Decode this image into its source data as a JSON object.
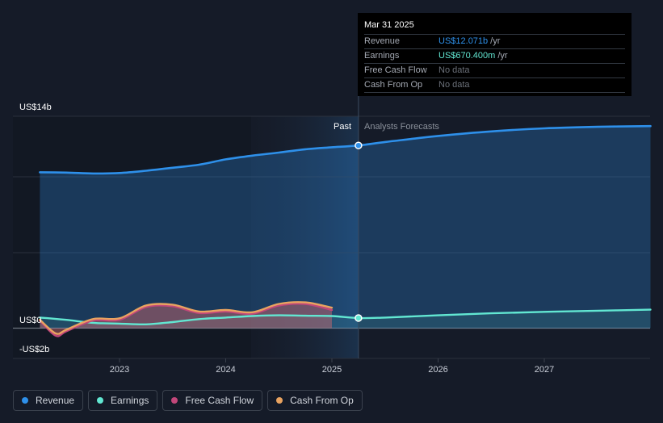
{
  "colors": {
    "revenue": "#2e90ea",
    "earnings": "#62e7d2",
    "free_cash_flow": "#c2477a",
    "cash_from_op": "#e9a360",
    "background": "#151b28"
  },
  "tooltip": {
    "date": "Mar 31 2025",
    "rows": [
      {
        "label": "Revenue",
        "value": "US$12.071b",
        "unit": "/yr"
      },
      {
        "label": "Earnings",
        "value": "US$670.400m",
        "unit": "/yr"
      },
      {
        "label": "Free Cash Flow",
        "value": "No data",
        "unit": ""
      },
      {
        "label": "Cash From Op",
        "value": "No data",
        "unit": ""
      }
    ]
  },
  "legend": [
    {
      "label": "Revenue",
      "icon": "revenue-dot-icon"
    },
    {
      "label": "Earnings",
      "icon": "earnings-dot-icon"
    },
    {
      "label": "Free Cash Flow",
      "icon": "free-cash-flow-dot-icon"
    },
    {
      "label": "Cash From Op",
      "icon": "cash-from-op-dot-icon"
    }
  ],
  "chart_data": {
    "type": "line",
    "y_tick_labels": [
      "US$14b",
      "US$0",
      "-US$2b"
    ],
    "ylim": [
      -2,
      14
    ],
    "x_ticks": [
      2023,
      2024,
      2025,
      2026,
      2027
    ],
    "x_tick_labels": [
      "2023",
      "2024",
      "2025",
      "2026",
      "2027"
    ],
    "xlim": [
      2022.4,
      2028.0
    ],
    "divider_x": 2025.25,
    "past_label": "Past",
    "forecast_label": "Analysts Forecasts",
    "grid": true,
    "series": [
      {
        "name": "Revenue",
        "key": "revenue",
        "points": [
          [
            2022.25,
            10.3
          ],
          [
            2022.5,
            10.28
          ],
          [
            2022.75,
            10.22
          ],
          [
            2023.0,
            10.25
          ],
          [
            2023.25,
            10.4
          ],
          [
            2023.5,
            10.6
          ],
          [
            2023.75,
            10.8
          ],
          [
            2024.0,
            11.15
          ],
          [
            2024.25,
            11.4
          ],
          [
            2024.5,
            11.6
          ],
          [
            2024.75,
            11.82
          ],
          [
            2025.0,
            11.95
          ],
          [
            2025.25,
            12.07
          ],
          [
            2025.5,
            12.3
          ],
          [
            2025.75,
            12.5
          ],
          [
            2026.0,
            12.7
          ],
          [
            2026.5,
            13.0
          ],
          [
            2027.0,
            13.2
          ],
          [
            2027.5,
            13.3
          ],
          [
            2028.0,
            13.35
          ]
        ]
      },
      {
        "name": "Earnings",
        "key": "earnings",
        "points": [
          [
            2022.25,
            0.7
          ],
          [
            2022.5,
            0.55
          ],
          [
            2022.75,
            0.35
          ],
          [
            2023.0,
            0.3
          ],
          [
            2023.25,
            0.25
          ],
          [
            2023.5,
            0.4
          ],
          [
            2023.75,
            0.6
          ],
          [
            2024.0,
            0.7
          ],
          [
            2024.25,
            0.8
          ],
          [
            2024.5,
            0.85
          ],
          [
            2024.75,
            0.82
          ],
          [
            2025.0,
            0.8
          ],
          [
            2025.25,
            0.67
          ],
          [
            2025.5,
            0.7
          ],
          [
            2026.0,
            0.85
          ],
          [
            2026.5,
            0.98
          ],
          [
            2027.0,
            1.08
          ],
          [
            2027.5,
            1.15
          ],
          [
            2028.0,
            1.22
          ]
        ]
      },
      {
        "name": "Free Cash Flow",
        "key": "free_cash_flow",
        "points": [
          [
            2022.25,
            0.5
          ],
          [
            2022.4,
            -0.5
          ],
          [
            2022.5,
            -0.2
          ],
          [
            2022.75,
            0.5
          ],
          [
            2023.0,
            0.55
          ],
          [
            2023.25,
            1.4
          ],
          [
            2023.5,
            1.45
          ],
          [
            2023.75,
            1.0
          ],
          [
            2024.0,
            1.1
          ],
          [
            2024.25,
            0.95
          ],
          [
            2024.5,
            1.5
          ],
          [
            2024.75,
            1.6
          ],
          [
            2025.0,
            1.2
          ]
        ]
      },
      {
        "name": "Cash From Op",
        "key": "cash_from_op",
        "points": [
          [
            2022.25,
            0.55
          ],
          [
            2022.4,
            -0.35
          ],
          [
            2022.5,
            -0.1
          ],
          [
            2022.75,
            0.6
          ],
          [
            2023.0,
            0.65
          ],
          [
            2023.25,
            1.5
          ],
          [
            2023.5,
            1.55
          ],
          [
            2023.75,
            1.1
          ],
          [
            2024.0,
            1.2
          ],
          [
            2024.25,
            1.05
          ],
          [
            2024.5,
            1.6
          ],
          [
            2024.75,
            1.7
          ],
          [
            2025.0,
            1.35
          ]
        ]
      }
    ],
    "highlight_points": [
      {
        "series": "Revenue",
        "x": 2025.25,
        "y": 12.07
      },
      {
        "series": "Earnings",
        "x": 2025.25,
        "y": 0.67
      }
    ]
  }
}
